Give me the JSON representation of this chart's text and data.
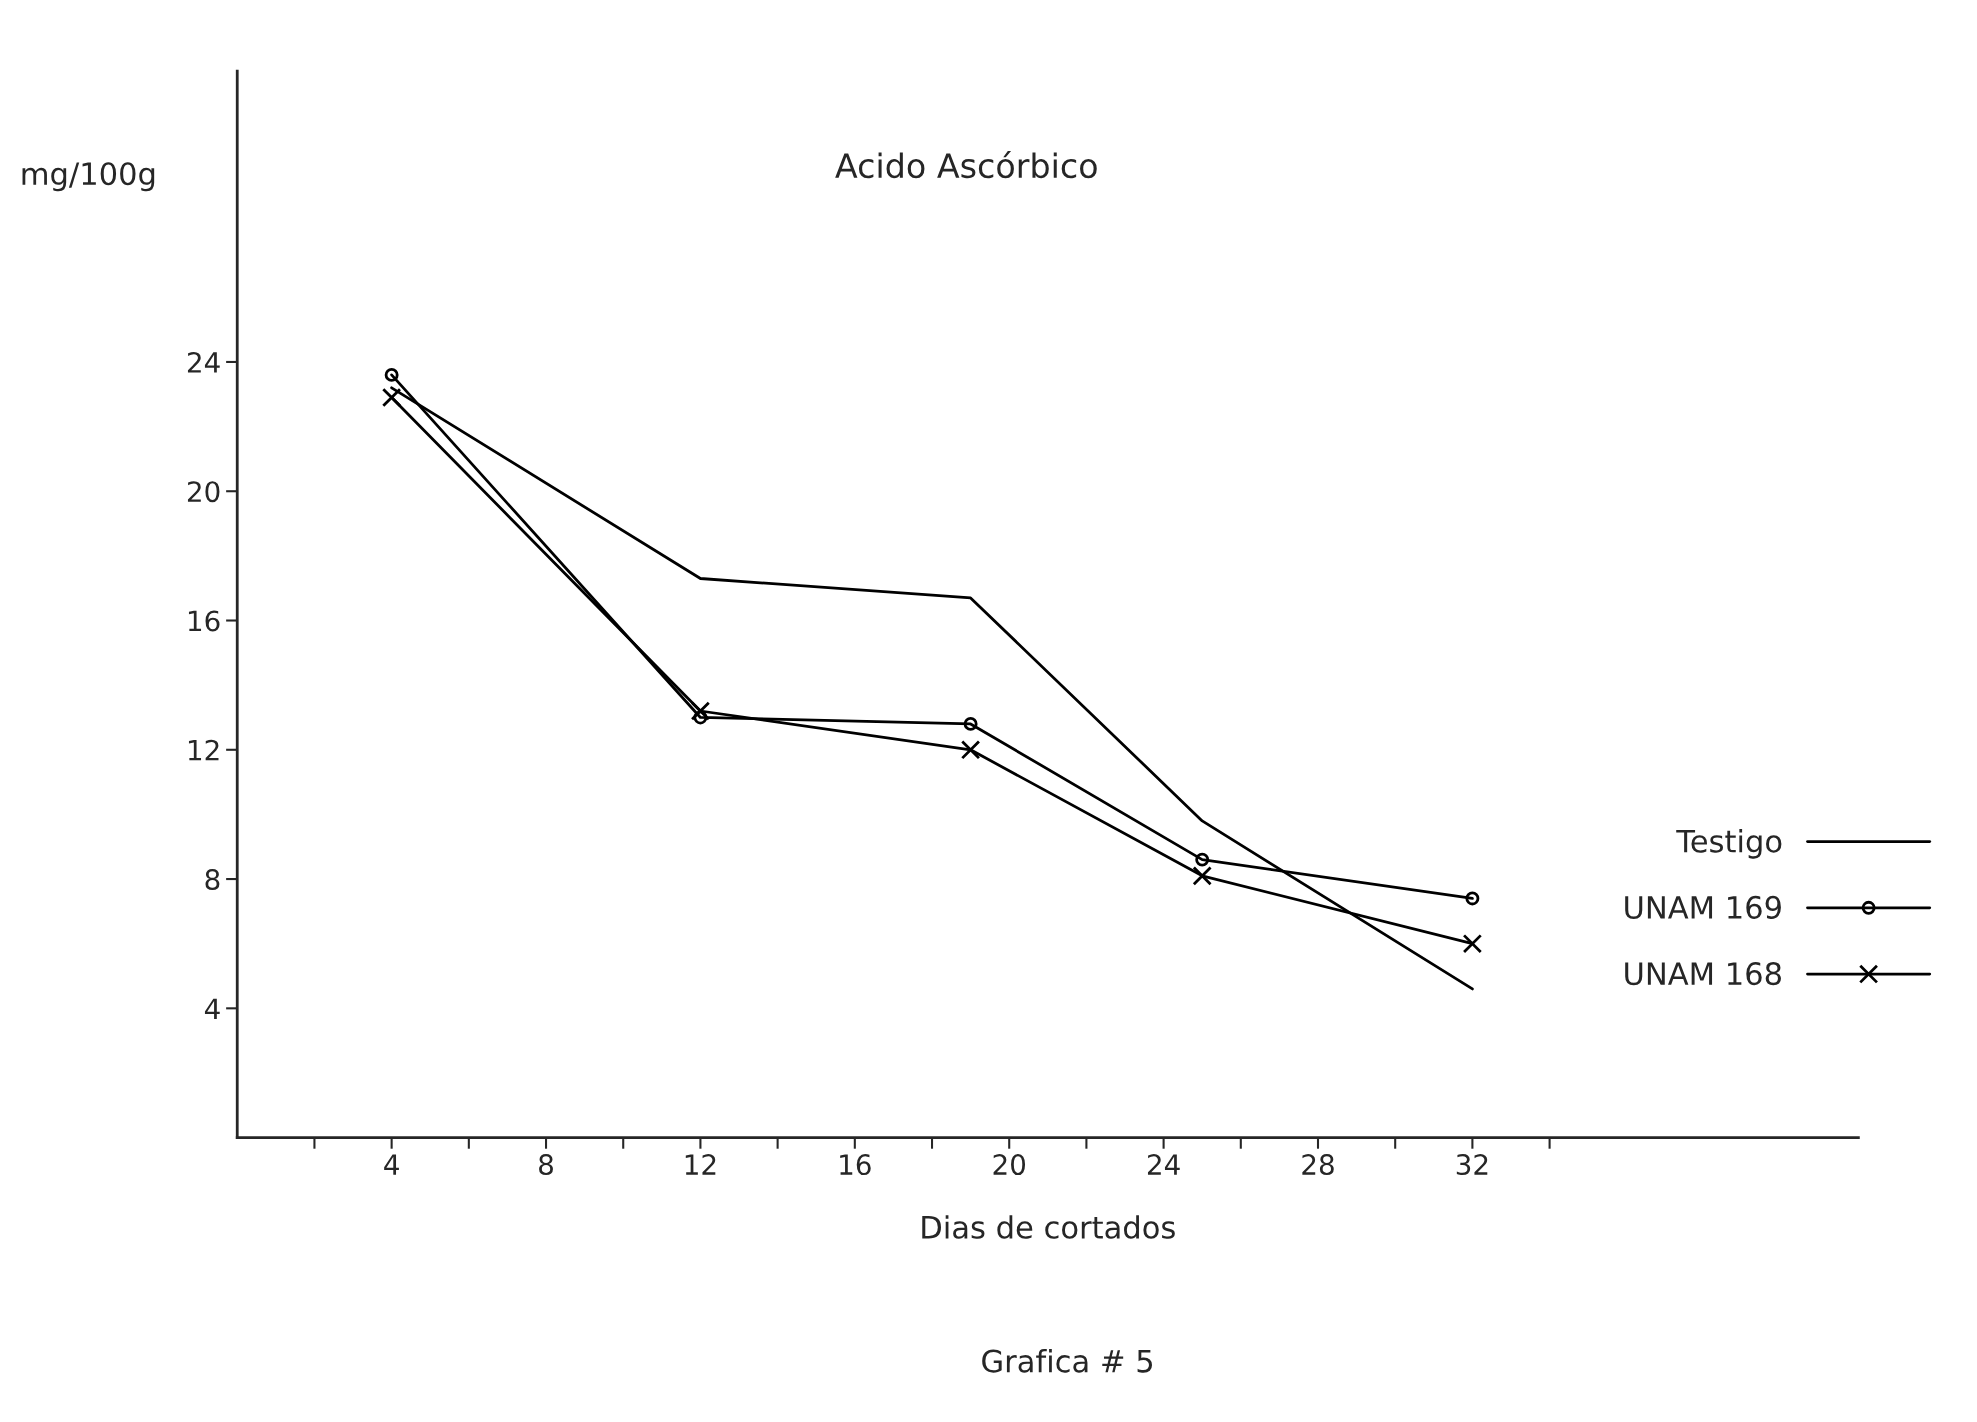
{
  "chart_data": {
    "type": "line",
    "title": "Acido Ascórbico",
    "xlabel": "Dias de cortados",
    "ylabel": "mg/100g",
    "annotations": [
      "Grafica # 5"
    ],
    "x": [
      4,
      12,
      19,
      25,
      32
    ],
    "series": [
      {
        "name": "Testigo",
        "color": "#000000",
        "marker": "none",
        "values": [
          23.2,
          17.3,
          16.7,
          9.8,
          4.6
        ]
      },
      {
        "name": "UNAM 169",
        "color": "#000000",
        "marker": "circle",
        "values": [
          23.6,
          13.0,
          12.8,
          8.6,
          7.4
        ]
      },
      {
        "name": "UNAM 168",
        "color": "#000000",
        "marker": "cross",
        "values": [
          22.9,
          13.2,
          12.0,
          8.1,
          6.0
        ]
      }
    ],
    "xlim": [
      0,
      42
    ],
    "ylim": [
      0,
      33
    ],
    "xticks": [
      {
        "value": 2,
        "label": null
      },
      4,
      {
        "value": 6,
        "label": null
      },
      8,
      {
        "value": 10,
        "label": null
      },
      12,
      {
        "value": 14,
        "label": null
      },
      16,
      {
        "value": 18,
        "label": null
      },
      20,
      {
        "value": 22,
        "label": null
      },
      24,
      {
        "value": 26,
        "label": null
      },
      28,
      {
        "value": 30,
        "label": null
      },
      32,
      {
        "value": 34,
        "label": null
      }
    ],
    "yticks": [
      4,
      8,
      12,
      16,
      20,
      24
    ],
    "grid": false,
    "legend": "right",
    "line_style": "solid"
  }
}
